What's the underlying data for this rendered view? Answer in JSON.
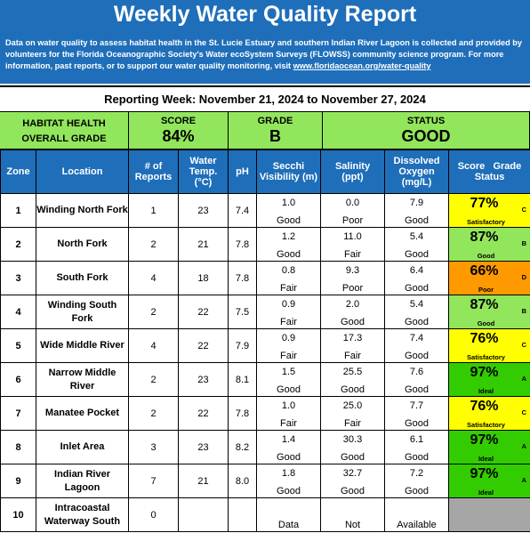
{
  "header": {
    "title": "Weekly Water Quality Report",
    "description": "Data on water quality to assess habitat health in the St. Lucie Estuary and southern Indian River Lagoon is collected and provided by volunteers for the Florida Oceanographic Society's Water ecoSystem Surveys (FLOWSS) community science program.  For more information, past reports, or to support our water quality monitoring, visit ",
    "link": "www.floridaocean.org/water-quality"
  },
  "reporting_week": "Reporting Week: November 21, 2024 to November 27, 2024",
  "summary": {
    "habitat_label_1": "HABITAT HEALTH",
    "habitat_label_2": "OVERALL GRADE",
    "score_label": "SCORE",
    "score_value": "84%",
    "grade_label": "GRADE",
    "grade_value": "B",
    "status_label": "STATUS",
    "status_value": "GOOD",
    "color": "#92e65c"
  },
  "columns": {
    "zone": "Zone",
    "location": "Location",
    "reports_1": "# of",
    "reports_2": "Reports",
    "temp_1": "Water",
    "temp_2": "Temp.",
    "temp_3": "(°C)",
    "ph": "pH",
    "secchi_1": "Secchi",
    "secchi_2": "Visibility (m)",
    "salinity_1": "Salinity",
    "salinity_2": "(ppt)",
    "oxygen_1": "Dissolved",
    "oxygen_2": "Oxygen",
    "oxygen_3": "(mg/L)",
    "score_1": "Score   Grade",
    "score_2": "Status"
  },
  "rows": [
    {
      "zone": "1",
      "location": "Winding North Fork",
      "reports": "1",
      "temp": "23",
      "ph": "7.4",
      "secchi": "1.0",
      "secchi_q": "Good",
      "salinity": "0.0",
      "salinity_q": "Poor",
      "oxygen": "7.9",
      "oxygen_q": "Good",
      "score": "77%",
      "grade": "C",
      "status": "Satisfactory",
      "color": "#ffff00"
    },
    {
      "zone": "2",
      "location": "North Fork",
      "reports": "2",
      "temp": "21",
      "ph": "7.8",
      "secchi": "1.2",
      "secchi_q": "Good",
      "salinity": "11.0",
      "salinity_q": "Fair",
      "oxygen": "5.4",
      "oxygen_q": "Good",
      "score": "87%",
      "grade": "B",
      "status": "Good",
      "color": "#92e65c"
    },
    {
      "zone": "3",
      "location": "South Fork",
      "reports": "4",
      "temp": "18",
      "ph": "7.8",
      "secchi": "0.8",
      "secchi_q": "Fair",
      "salinity": "9.3",
      "salinity_q": "Poor",
      "oxygen": "6.4",
      "oxygen_q": "Good",
      "score": "66%",
      "grade": "D",
      "status": "Poor",
      "color": "#ff9900"
    },
    {
      "zone": "4",
      "location": "Winding South Fork",
      "reports": "2",
      "temp": "22",
      "ph": "7.5",
      "secchi": "0.9",
      "secchi_q": "Fair",
      "salinity": "2.0",
      "salinity_q": "Good",
      "oxygen": "5.4",
      "oxygen_q": "Good",
      "score": "87%",
      "grade": "B",
      "status": "Good",
      "color": "#92e65c"
    },
    {
      "zone": "5",
      "location": "Wide Middle River",
      "reports": "4",
      "temp": "22",
      "ph": "7.9",
      "secchi": "0.9",
      "secchi_q": "Fair",
      "salinity": "17.3",
      "salinity_q": "Fair",
      "oxygen": "7.4",
      "oxygen_q": "Good",
      "score": "76%",
      "grade": "C",
      "status": "Satisfactory",
      "color": "#ffff00"
    },
    {
      "zone": "6",
      "location": "Narrow Middle River",
      "reports": "2",
      "temp": "23",
      "ph": "8.1",
      "secchi": "1.5",
      "secchi_q": "Good",
      "salinity": "25.5",
      "salinity_q": "Good",
      "oxygen": "7.6",
      "oxygen_q": "Good",
      "score": "97%",
      "grade": "A",
      "status": "Ideal",
      "color": "#33cc00"
    },
    {
      "zone": "7",
      "location": "Manatee Pocket",
      "reports": "2",
      "temp": "22",
      "ph": "7.8",
      "secchi": "1.0",
      "secchi_q": "Fair",
      "salinity": "25.0",
      "salinity_q": "Fair",
      "oxygen": "7.7",
      "oxygen_q": "Good",
      "score": "76%",
      "grade": "C",
      "status": "Satisfactory",
      "color": "#ffff00"
    },
    {
      "zone": "8",
      "location": "Inlet Area",
      "reports": "3",
      "temp": "23",
      "ph": "8.2",
      "secchi": "1.4",
      "secchi_q": "Good",
      "salinity": "30.3",
      "salinity_q": "Good",
      "oxygen": "6.1",
      "oxygen_q": "Good",
      "score": "97%",
      "grade": "A",
      "status": "Ideal",
      "color": "#33cc00"
    },
    {
      "zone": "9",
      "location": "Indian River Lagoon",
      "reports": "7",
      "temp": "21",
      "ph": "8.0",
      "secchi": "1.8",
      "secchi_q": "Good",
      "salinity": "32.7",
      "salinity_q": "Good",
      "oxygen": "7.2",
      "oxygen_q": "Good",
      "score": "97%",
      "grade": "A",
      "status": "Ideal",
      "color": "#33cc00"
    },
    {
      "zone": "10",
      "location": "Intracoastal Waterway South",
      "reports": "0",
      "temp": "",
      "ph": "",
      "secchi": "",
      "secchi_q": "Data",
      "salinity": "",
      "salinity_q": "Not",
      "oxygen": "",
      "oxygen_q": "Available",
      "score": "",
      "grade": "",
      "status": "",
      "color": "#a6a6a6"
    }
  ]
}
